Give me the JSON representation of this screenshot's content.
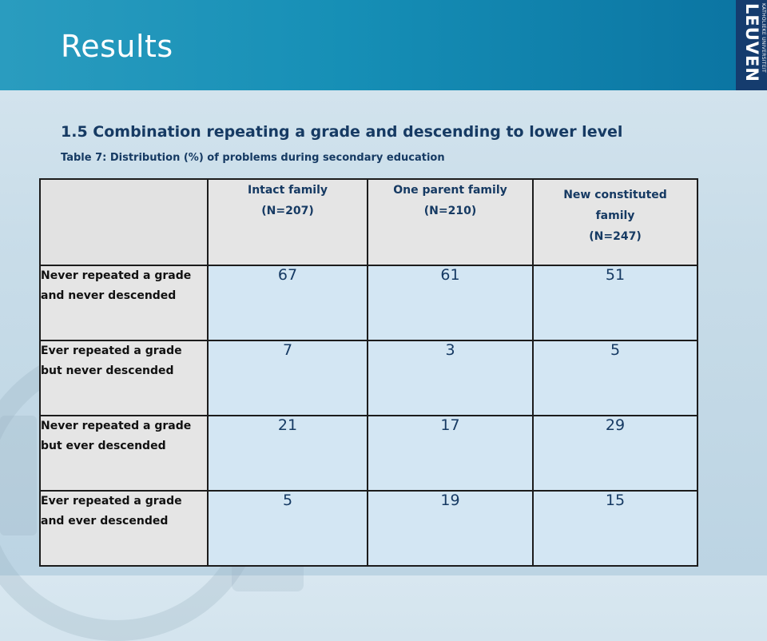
{
  "slide": {
    "title": "Results",
    "subtitle": "1.5 Combination repeating a grade and descending to lower level",
    "caption": "Table 7: Distribution (%) of problems during secondary education"
  },
  "logo": {
    "line_small": "KATHOLIEKE UNIVERSITEIT",
    "line_big": "LEUVEN"
  },
  "table": {
    "columns": [
      {
        "label": "Intact family",
        "n": "(N=207)"
      },
      {
        "label": "One parent family",
        "n": "(N=210)"
      },
      {
        "label": "New constituted family",
        "n": "(N=247)"
      }
    ],
    "rows": [
      {
        "label": "Never repeated a grade and never descended",
        "values": [
          "67",
          "61",
          "51"
        ]
      },
      {
        "label": "Ever repeated a grade but never descended",
        "values": [
          "7",
          "3",
          "5"
        ]
      },
      {
        "label": "Never repeated a grade but ever descended",
        "values": [
          "21",
          "17",
          "29"
        ]
      },
      {
        "label": "Ever repeated a grade and ever descended",
        "values": [
          "5",
          "19",
          "15"
        ]
      }
    ]
  },
  "colors": {
    "header_bar": "#168fb6",
    "logo_bg": "#153c6e",
    "text_navy": "#163a63",
    "cell_value_bg": "#d3e6f3",
    "cell_label_bg": "#e5e5e5"
  }
}
